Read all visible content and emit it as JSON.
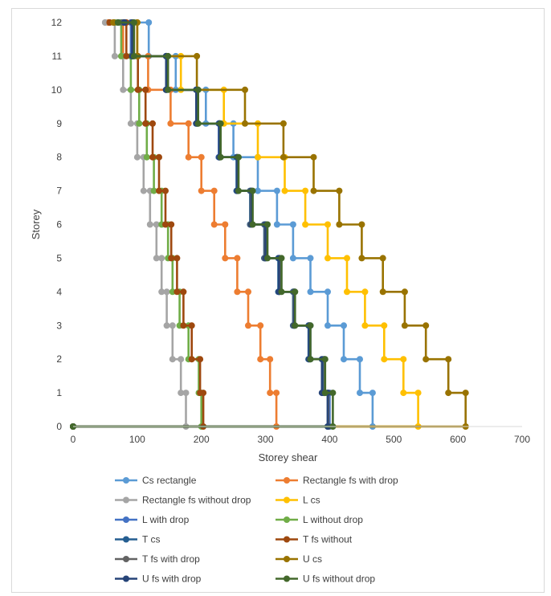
{
  "chart_data": {
    "type": "line",
    "title": "",
    "xlabel": "Storey shear",
    "ylabel": "Storey",
    "xlim": [
      0,
      700
    ],
    "ylim": [
      0,
      12
    ],
    "x_ticks": [
      0,
      100,
      200,
      300,
      400,
      500,
      600,
      700
    ],
    "y_ticks": [
      0,
      1,
      2,
      3,
      4,
      5,
      6,
      7,
      8,
      9,
      10,
      11,
      12
    ],
    "grid": false,
    "legend_position": "bottom",
    "series": [
      {
        "name": "Cs rectangle",
        "color": "#5B9BD5",
        "shear": [
          467,
          447,
          422,
          397,
          370,
          343,
          318,
          288,
          250,
          207,
          160,
          118,
          73
        ]
      },
      {
        "name": "Rectangle fs with drop",
        "color": "#ED7D31",
        "shear": [
          317,
          307,
          292,
          273,
          256,
          237,
          220,
          200,
          180,
          152,
          117,
          78,
          55
        ]
      },
      {
        "name": "Rectangle fs without drop",
        "color": "#A5A5A5",
        "shear": [
          176,
          168,
          155,
          146,
          138,
          130,
          120,
          110,
          100,
          90,
          78,
          65,
          50
        ]
      },
      {
        "name": "L cs",
        "color": "#FFC000",
        "shear": [
          538,
          515,
          485,
          455,
          427,
          397,
          362,
          330,
          288,
          235,
          168,
          100,
          90
        ]
      },
      {
        "name": "L with drop",
        "color": "#4472C4",
        "shear": [
          400,
          392,
          370,
          345,
          322,
          300,
          277,
          255,
          227,
          192,
          146,
          90,
          75
        ]
      },
      {
        "name": "L without drop",
        "color": "#70AD47",
        "shear": [
          200,
          196,
          180,
          166,
          155,
          148,
          138,
          126,
          115,
          103,
          90,
          75,
          65
        ]
      },
      {
        "name": "T cs",
        "color": "#255E91",
        "shear": [
          397,
          390,
          367,
          343,
          320,
          298,
          276,
          255,
          228,
          194,
          145,
          93,
          80
        ]
      },
      {
        "name": "T fs without",
        "color": "#9E480E",
        "shear": [
          203,
          198,
          185,
          172,
          162,
          153,
          144,
          134,
          124,
          113,
          101,
          83,
          57
        ]
      },
      {
        "name": "T fs with drop",
        "color": "#636363",
        "shear": [
          398,
          392,
          368,
          344,
          322,
          299,
          277,
          256,
          228,
          194,
          145,
          93,
          77
        ]
      },
      {
        "name": "U cs",
        "color": "#997300",
        "shear": [
          612,
          585,
          550,
          517,
          483,
          450,
          415,
          375,
          328,
          268,
          193,
          100,
          63
        ]
      },
      {
        "name": "U fs with drop",
        "color": "#264478",
        "shear": [
          397,
          388,
          368,
          345,
          321,
          300,
          278,
          256,
          228,
          192,
          145,
          92,
          80
        ]
      },
      {
        "name": "U fs without drop",
        "color": "#43682B",
        "shear": [
          405,
          393,
          370,
          346,
          325,
          303,
          280,
          258,
          230,
          195,
          148,
          95,
          70
        ]
      }
    ]
  }
}
